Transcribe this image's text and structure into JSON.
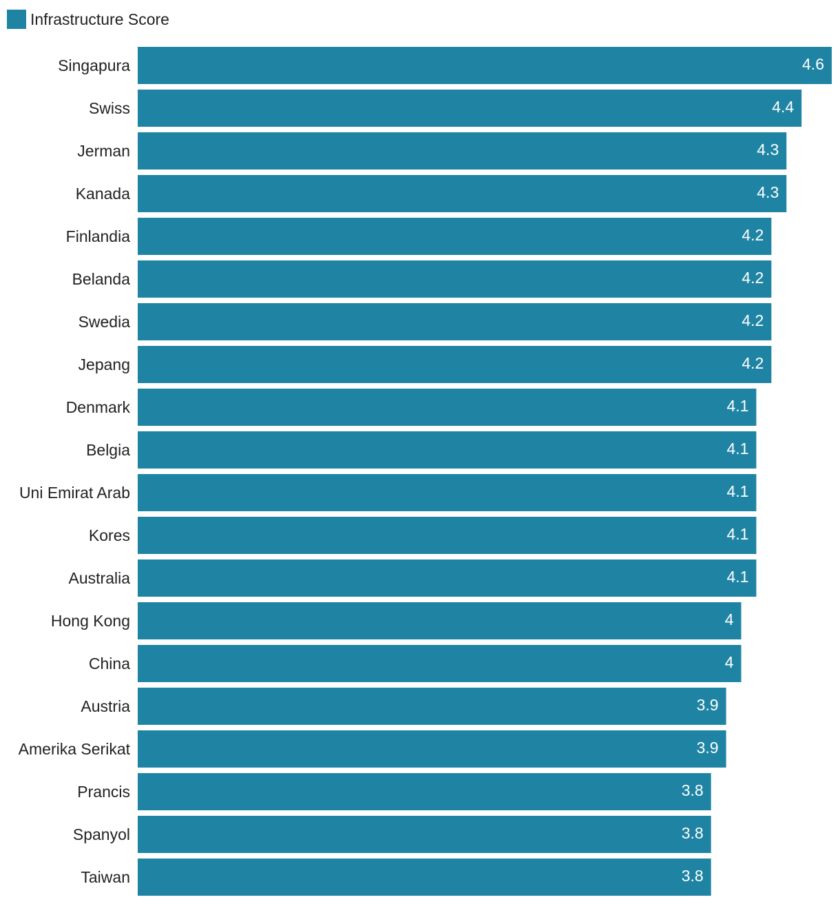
{
  "colors": {
    "bar": "#1f84a3",
    "category_text": "#222222",
    "value_text": "#ffffff"
  },
  "chart_data": {
    "type": "bar",
    "orientation": "horizontal",
    "legend": {
      "position": "top-left",
      "entries": [
        "Infrastructure Score"
      ]
    },
    "xlim": [
      0,
      4.6
    ],
    "grid": false,
    "categories": [
      "Singapura",
      "Swiss",
      "Jerman",
      "Kanada",
      "Finlandia",
      "Belanda",
      "Swedia",
      "Jepang",
      "Denmark",
      "Belgia",
      "Uni Emirat Arab",
      "Kores",
      "Australia",
      "Hong Kong",
      "China",
      "Austria",
      "Amerika Serikat",
      "Prancis",
      "Spanyol",
      "Taiwan"
    ],
    "series": [
      {
        "name": "Infrastructure Score",
        "values": [
          4.6,
          4.4,
          4.3,
          4.3,
          4.2,
          4.2,
          4.2,
          4.2,
          4.1,
          4.1,
          4.1,
          4.1,
          4.1,
          4,
          4,
          3.9,
          3.9,
          3.8,
          3.8,
          3.8
        ]
      }
    ]
  }
}
